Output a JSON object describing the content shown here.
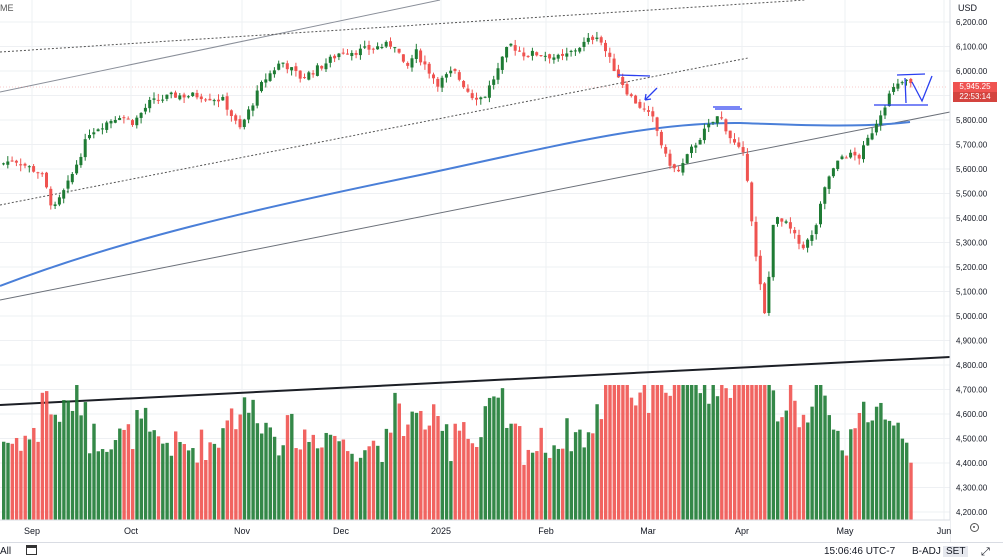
{
  "header": {
    "symbol_suffix": "ME",
    "currency": "USD"
  },
  "price_badge": {
    "last": "5,945.25",
    "countdown": "22:53:14",
    "color": "#ef5350"
  },
  "bottom_bar": {
    "range": "All",
    "clock": "15:06:46 UTC-7",
    "adjust": "B-ADJ",
    "session": "SET"
  },
  "colors": {
    "up": "#1e7b34",
    "down": "#ef5350",
    "ma": "#4a7fd8",
    "annotation": "#2a3ff0",
    "grid": "#eef0f3"
  },
  "chart_data": {
    "type": "candlestick",
    "price_axis": {
      "min": 4200,
      "max": 6200,
      "step": 100,
      "labels": [
        "6,200.00",
        "6,100.00",
        "6,000.00",
        "5,900.00",
        "5,800.00",
        "5,700.00",
        "5,600.00",
        "5,500.00",
        "5,400.00",
        "5,300.00",
        "5,200.00",
        "5,100.00",
        "5,000.00",
        "4,900.00",
        "4,800.00",
        "4,700.00",
        "4,600.00",
        "4,500.00",
        "4,400.00",
        "4,300.00",
        "4,200.00"
      ]
    },
    "time_axis": [
      "Sep",
      "Oct",
      "Nov",
      "Dec",
      "2025",
      "Feb",
      "Mar",
      "Apr",
      "May",
      "Jun"
    ],
    "last_price": 5945.25,
    "close_path": [
      [
        0,
        5620
      ],
      [
        12,
        5640
      ],
      [
        40,
        5580
      ],
      [
        52,
        5430
      ],
      [
        68,
        5550
      ],
      [
        88,
        5750
      ],
      [
        118,
        5820
      ],
      [
        132,
        5790
      ],
      [
        148,
        5870
      ],
      [
        172,
        5900
      ],
      [
        198,
        5900
      ],
      [
        222,
        5880
      ],
      [
        238,
        5760
      ],
      [
        262,
        5960
      ],
      [
        280,
        6040
      ],
      [
        300,
        5970
      ],
      [
        320,
        6020
      ],
      [
        340,
        6080
      ],
      [
        356,
        6080
      ],
      [
        378,
        6100
      ],
      [
        394,
        6110
      ],
      [
        404,
        6000
      ],
      [
        414,
        6080
      ],
      [
        436,
        5950
      ],
      [
        452,
        6000
      ],
      [
        470,
        5900
      ],
      [
        482,
        5890
      ],
      [
        496,
        6000
      ],
      [
        508,
        6110
      ],
      [
        522,
        6070
      ],
      [
        540,
        6070
      ],
      [
        560,
        6050
      ],
      [
        578,
        6100
      ],
      [
        596,
        6150
      ],
      [
        610,
        6030
      ],
      [
        628,
        5900
      ],
      [
        640,
        5850
      ],
      [
        652,
        5800
      ],
      [
        664,
        5650
      ],
      [
        676,
        5580
      ],
      [
        690,
        5680
      ],
      [
        704,
        5760
      ],
      [
        718,
        5820
      ],
      [
        730,
        5720
      ],
      [
        744,
        5640
      ],
      [
        754,
        5250
      ],
      [
        764,
        4980
      ],
      [
        772,
        5400
      ],
      [
        786,
        5370
      ],
      [
        800,
        5280
      ],
      [
        812,
        5330
      ],
      [
        826,
        5560
      ],
      [
        842,
        5660
      ],
      [
        858,
        5650
      ],
      [
        870,
        5750
      ],
      [
        878,
        5820
      ],
      [
        890,
        5920
      ],
      [
        903,
        5960
      ],
      [
        910,
        5945
      ]
    ]
  }
}
